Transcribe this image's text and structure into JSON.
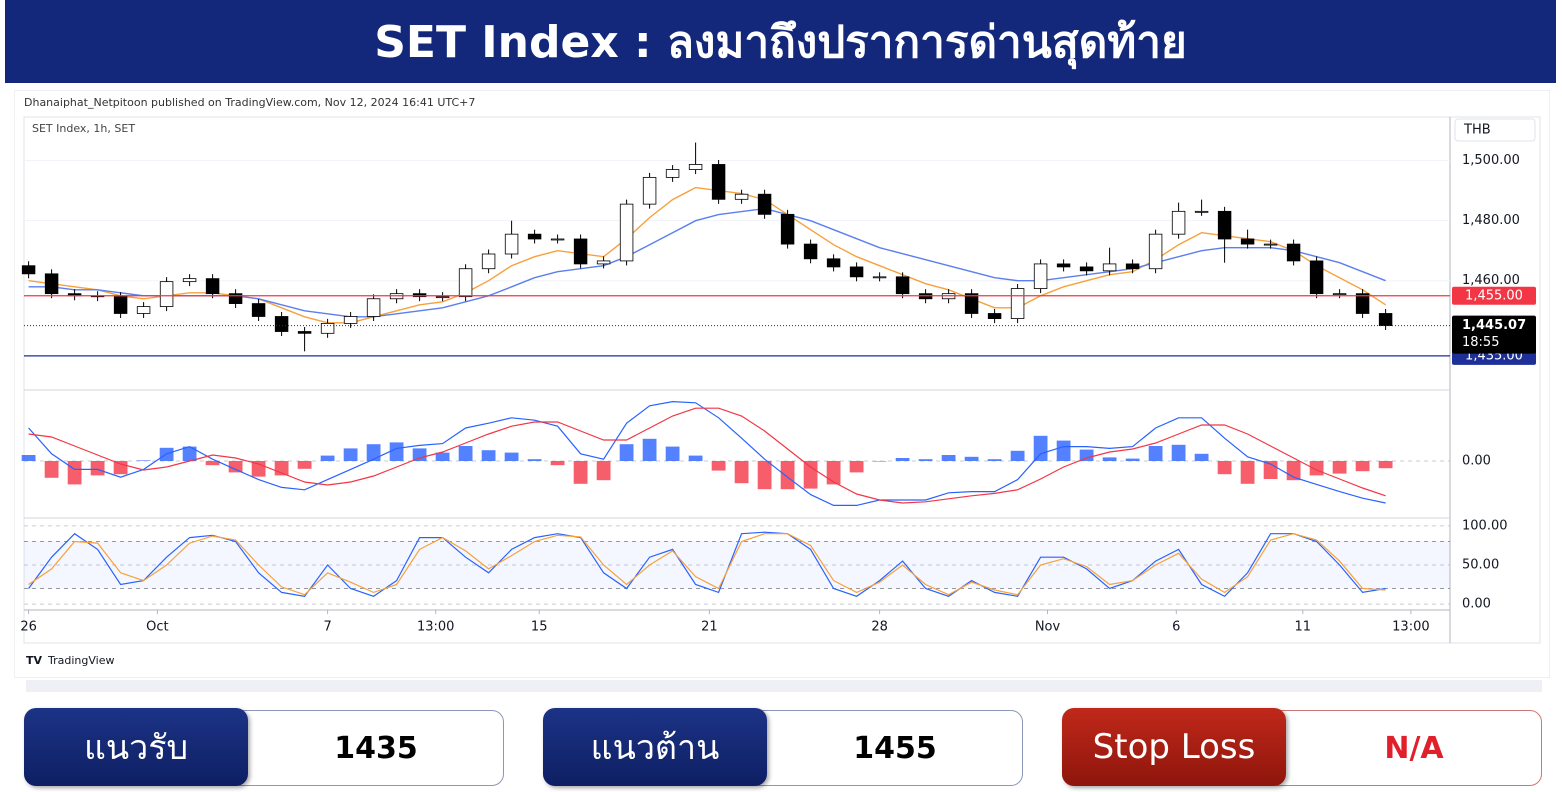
{
  "header": {
    "title": "SET Index : ลงมาถึงปราการด่านสุดท้าย"
  },
  "publisher": "Dhanaiphat_Netpitoon published on TradingView.com, Nov 12, 2024 16:41 UTC+7",
  "footer_logo": "TradingView",
  "panels": [
    {
      "label": "แนวรับ",
      "value": "1435"
    },
    {
      "label": "แนวต้าน",
      "value": "1455"
    },
    {
      "label": "Stop Loss",
      "value": "N/A"
    }
  ],
  "chart_data": [
    {
      "type": "candlestick",
      "title": "SET Index, 1h, SET",
      "currency": "THB",
      "up_color": "#ffffff",
      "down_color": "#000000",
      "xlim": [
        -0.2,
        61.8
      ],
      "ylim": [
        1424.3,
        1514.5
      ],
      "yticks": [
        {
          "value": 1460,
          "label": "1,460.00"
        },
        {
          "value": 1480,
          "label": "1,480.00"
        },
        {
          "value": 1500,
          "label": "1,500.00"
        }
      ],
      "open": [
        1465.0,
        1462.3,
        1455.7,
        1455.0,
        1454.7,
        1449.1,
        1451.4,
        1459.7,
        1460.7,
        1455.7,
        1452.4,
        1448.1,
        1443.1,
        1442.5,
        1445.8,
        1448.1,
        1454.0,
        1455.7,
        1454.7,
        1454.7,
        1464.0,
        1468.9,
        1475.5,
        1473.9,
        1473.9,
        1465.6,
        1466.6,
        1485.5,
        1494.4,
        1497.0,
        1498.7,
        1487.1,
        1488.8,
        1482.1,
        1472.2,
        1467.3,
        1464.6,
        1461.3,
        1461.3,
        1455.7,
        1454.0,
        1455.7,
        1449.1,
        1447.4,
        1457.4,
        1465.6,
        1464.6,
        1463.3,
        1465.6,
        1464.0,
        1475.5,
        1483.1,
        1483.1,
        1473.9,
        1472.2,
        1472.2,
        1466.6,
        1455.7,
        1455.7,
        1449.1
      ],
      "high": [
        1466.5,
        1463.8,
        1457.2,
        1456.5,
        1456.2,
        1452.9,
        1461.2,
        1462.2,
        1462.2,
        1457.2,
        1453.9,
        1449.6,
        1444.6,
        1447.3,
        1449.6,
        1455.5,
        1457.2,
        1457.2,
        1456.2,
        1465.5,
        1470.4,
        1480.0,
        1477.0,
        1475.4,
        1475.4,
        1468.1,
        1487.0,
        1495.9,
        1498.5,
        1506.0,
        1500.2,
        1490.3,
        1490.3,
        1483.6,
        1473.7,
        1468.8,
        1466.1,
        1462.8,
        1462.8,
        1457.2,
        1457.2,
        1457.2,
        1450.6,
        1458.9,
        1467.1,
        1467.1,
        1466.1,
        1471.0,
        1467.1,
        1477.0,
        1486.0,
        1487.0,
        1484.6,
        1477.0,
        1473.7,
        1473.7,
        1468.1,
        1457.2,
        1457.2,
        1450.6
      ],
      "low": [
        1460.8,
        1454.2,
        1453.5,
        1453.2,
        1447.6,
        1447.6,
        1449.9,
        1458.2,
        1454.2,
        1450.9,
        1446.6,
        1441.6,
        1436.5,
        1441.0,
        1444.3,
        1446.6,
        1452.5,
        1453.2,
        1453.2,
        1453.2,
        1462.5,
        1467.4,
        1472.4,
        1472.4,
        1464.1,
        1464.1,
        1465.1,
        1484.0,
        1492.9,
        1495.5,
        1485.6,
        1485.6,
        1480.6,
        1470.7,
        1465.8,
        1463.1,
        1459.8,
        1459.8,
        1454.2,
        1452.5,
        1452.5,
        1447.6,
        1445.9,
        1445.9,
        1455.9,
        1463.1,
        1461.8,
        1461.8,
        1462.5,
        1462.5,
        1474.0,
        1481.6,
        1466.0,
        1470.7,
        1470.7,
        1465.1,
        1454.2,
        1454.2,
        1447.6,
        1443.6
      ],
      "close": [
        1462.3,
        1455.7,
        1455.0,
        1454.7,
        1449.1,
        1451.4,
        1459.7,
        1460.7,
        1455.7,
        1452.4,
        1448.1,
        1443.1,
        1442.5,
        1445.8,
        1448.1,
        1454.0,
        1455.7,
        1454.7,
        1454.7,
        1464.0,
        1468.9,
        1475.5,
        1473.9,
        1473.9,
        1465.6,
        1466.6,
        1485.5,
        1494.4,
        1497.0,
        1498.7,
        1487.1,
        1488.8,
        1482.1,
        1472.2,
        1467.3,
        1464.6,
        1461.3,
        1461.3,
        1455.7,
        1454.0,
        1455.7,
        1449.1,
        1447.4,
        1457.4,
        1465.6,
        1464.6,
        1463.3,
        1465.6,
        1464.0,
        1475.5,
        1483.1,
        1483.1,
        1473.9,
        1472.2,
        1472.2,
        1466.6,
        1455.7,
        1455.7,
        1449.1,
        1445.07
      ],
      "overlays": [
        {
          "color": "#f7a13b",
          "values": [
            1460,
            1459,
            1458,
            1457,
            1455,
            1454,
            1455,
            1456,
            1456,
            1455,
            1454,
            1451,
            1448,
            1446,
            1446,
            1448,
            1450,
            1452,
            1453,
            1456,
            1460,
            1465,
            1468,
            1470,
            1469,
            1468,
            1474,
            1481,
            1487,
            1491,
            1490,
            1489,
            1487,
            1482,
            1477,
            1472,
            1468,
            1465,
            1462,
            1459,
            1457,
            1454,
            1451,
            1451,
            1455,
            1458,
            1460,
            1462,
            1463,
            1467,
            1472,
            1476,
            1475,
            1474,
            1473,
            1470,
            1465,
            1461,
            1457,
            1452
          ]
        },
        {
          "color": "#5b7ff0",
          "values": [
            1458,
            1458,
            1457,
            1457,
            1456,
            1455,
            1455,
            1455,
            1455,
            1455,
            1454,
            1452,
            1450,
            1449,
            1448,
            1448,
            1449,
            1450,
            1451,
            1453,
            1455,
            1458,
            1461,
            1463,
            1464,
            1465,
            1468,
            1472,
            1476,
            1480,
            1482,
            1483,
            1484,
            1482,
            1480,
            1477,
            1474,
            1471,
            1469,
            1467,
            1465,
            1463,
            1461,
            1460,
            1460,
            1461,
            1462,
            1463,
            1464,
            1466,
            1468,
            1470,
            1471,
            1471,
            1471,
            1470,
            1468,
            1466,
            1463,
            1460
          ]
        }
      ],
      "levels": [
        {
          "value": 1455,
          "label": "1,455.00",
          "color": "#f23645"
        },
        {
          "value": 1435,
          "label": "1,435.00",
          "color": "#1e2f97"
        }
      ],
      "last": {
        "value": 1445.07,
        "label": "1,445.07",
        "countdown": "18:55"
      }
    },
    {
      "type": "macd",
      "xlim": [
        -0.2,
        61.8
      ],
      "ylim": [
        -9,
        11
      ],
      "yticks": [
        {
          "value": 0,
          "label": "0.00"
        }
      ],
      "series": [
        {
          "color": "#2962ff",
          "values": [
            5.5,
            1.2,
            -1.4,
            -1.4,
            -2.7,
            -1.4,
            1.2,
            2.4,
            0.3,
            -1.4,
            -3.1,
            -4.4,
            -4.8,
            -3.1,
            -1.4,
            0.3,
            2.1,
            2.6,
            2.9,
            5.5,
            6.3,
            7.2,
            6.8,
            5.8,
            1.2,
            0.3,
            6.3,
            9.2,
            9.9,
            9.7,
            7.2,
            3.8,
            0.3,
            -2.7,
            -5.6,
            -7.4,
            -7.4,
            -6.5,
            -6.5,
            -6.5,
            -5.3,
            -5.1,
            -5.1,
            -3.1,
            1.2,
            2.4,
            2.4,
            2.1,
            2.4,
            5.5,
            7.2,
            7.2,
            3.8,
            0.7,
            -0.5,
            -2.7,
            -3.9,
            -5.1,
            -6.2,
            -7.0
          ]
        },
        {
          "color": "#f23645",
          "values": [
            4.5,
            4.0,
            2.5,
            1.0,
            -0.5,
            -1.5,
            -1.0,
            0.0,
            1.0,
            0.5,
            -0.5,
            -2.0,
            -3.5,
            -4.0,
            -3.5,
            -2.5,
            -1.0,
            0.5,
            1.5,
            3.0,
            4.5,
            5.8,
            6.5,
            6.5,
            5.0,
            3.5,
            3.5,
            5.5,
            7.5,
            8.8,
            8.8,
            7.5,
            5.0,
            2.0,
            -1.0,
            -3.5,
            -5.5,
            -6.5,
            -7.0,
            -6.8,
            -6.3,
            -5.8,
            -5.4,
            -4.8,
            -3.0,
            -1.0,
            0.5,
            1.5,
            2.0,
            3.0,
            4.5,
            6.0,
            6.0,
            4.5,
            2.5,
            0.5,
            -1.5,
            -3.0,
            -4.5,
            -5.8
          ]
        }
      ],
      "histogram": {
        "positive_color": "#2962ff",
        "negative_color": "#f23645",
        "values": [
          1.0,
          -2.8,
          -3.9,
          -2.4,
          -2.2,
          0.1,
          2.2,
          2.4,
          -0.7,
          -1.9,
          -2.6,
          -2.4,
          -1.3,
          0.9,
          2.1,
          2.8,
          3.1,
          2.1,
          1.4,
          2.5,
          1.8,
          1.4,
          0.3,
          -0.7,
          -3.8,
          -3.2,
          2.8,
          3.7,
          2.4,
          0.9,
          -1.6,
          -3.7,
          -4.7,
          -4.7,
          -4.6,
          -3.9,
          -1.9,
          0.0,
          0.5,
          0.3,
          1.0,
          0.7,
          0.3,
          1.7,
          4.2,
          3.4,
          1.9,
          0.6,
          0.4,
          2.5,
          2.7,
          1.2,
          -2.2,
          -3.8,
          -3.0,
          -3.2,
          -2.4,
          -2.1,
          -1.7,
          -1.2
        ]
      }
    },
    {
      "type": "line",
      "xlim": [
        -0.2,
        61.8
      ],
      "xticks": [
        {
          "value": 0,
          "label": "26"
        },
        {
          "value": 5.6,
          "label": "Oct"
        },
        {
          "value": 13,
          "label": "7"
        },
        {
          "value": 17.7,
          "label": "13:00"
        },
        {
          "value": 22.2,
          "label": "15"
        },
        {
          "value": 29.6,
          "label": "21"
        },
        {
          "value": 37,
          "label": "28"
        },
        {
          "value": 44.3,
          "label": "Nov"
        },
        {
          "value": 49.9,
          "label": "6"
        },
        {
          "value": 55.4,
          "label": "11"
        },
        {
          "value": 60.1,
          "label": "13:00"
        }
      ],
      "ylim": [
        -5,
        105
      ],
      "yticks": [
        {
          "value": 0,
          "label": "0.00"
        },
        {
          "value": 50,
          "label": "50.00"
        },
        {
          "value": 100,
          "label": "100.00"
        }
      ],
      "band": [
        20,
        80
      ],
      "series": [
        {
          "color": "#2962ff",
          "values": [
            20,
            60,
            90,
            70,
            25,
            30,
            60,
            85,
            88,
            80,
            40,
            15,
            10,
            50,
            20,
            10,
            30,
            85,
            85,
            60,
            40,
            70,
            85,
            90,
            85,
            40,
            20,
            60,
            70,
            25,
            15,
            90,
            92,
            90,
            70,
            20,
            10,
            30,
            55,
            20,
            10,
            30,
            15,
            10,
            60,
            60,
            45,
            20,
            30,
            55,
            70,
            25,
            10,
            40,
            90,
            90,
            80,
            50,
            15,
            20
          ]
        },
        {
          "color": "#f7a13b",
          "values": [
            25,
            45,
            80,
            78,
            40,
            30,
            50,
            78,
            87,
            82,
            50,
            22,
            12,
            40,
            28,
            15,
            25,
            70,
            85,
            68,
            45,
            62,
            80,
            88,
            86,
            50,
            25,
            50,
            68,
            35,
            20,
            80,
            90,
            90,
            75,
            30,
            15,
            28,
            50,
            25,
            12,
            28,
            18,
            12,
            50,
            58,
            48,
            25,
            30,
            50,
            65,
            32,
            15,
            35,
            82,
            90,
            82,
            55,
            20,
            18
          ]
        }
      ]
    }
  ]
}
